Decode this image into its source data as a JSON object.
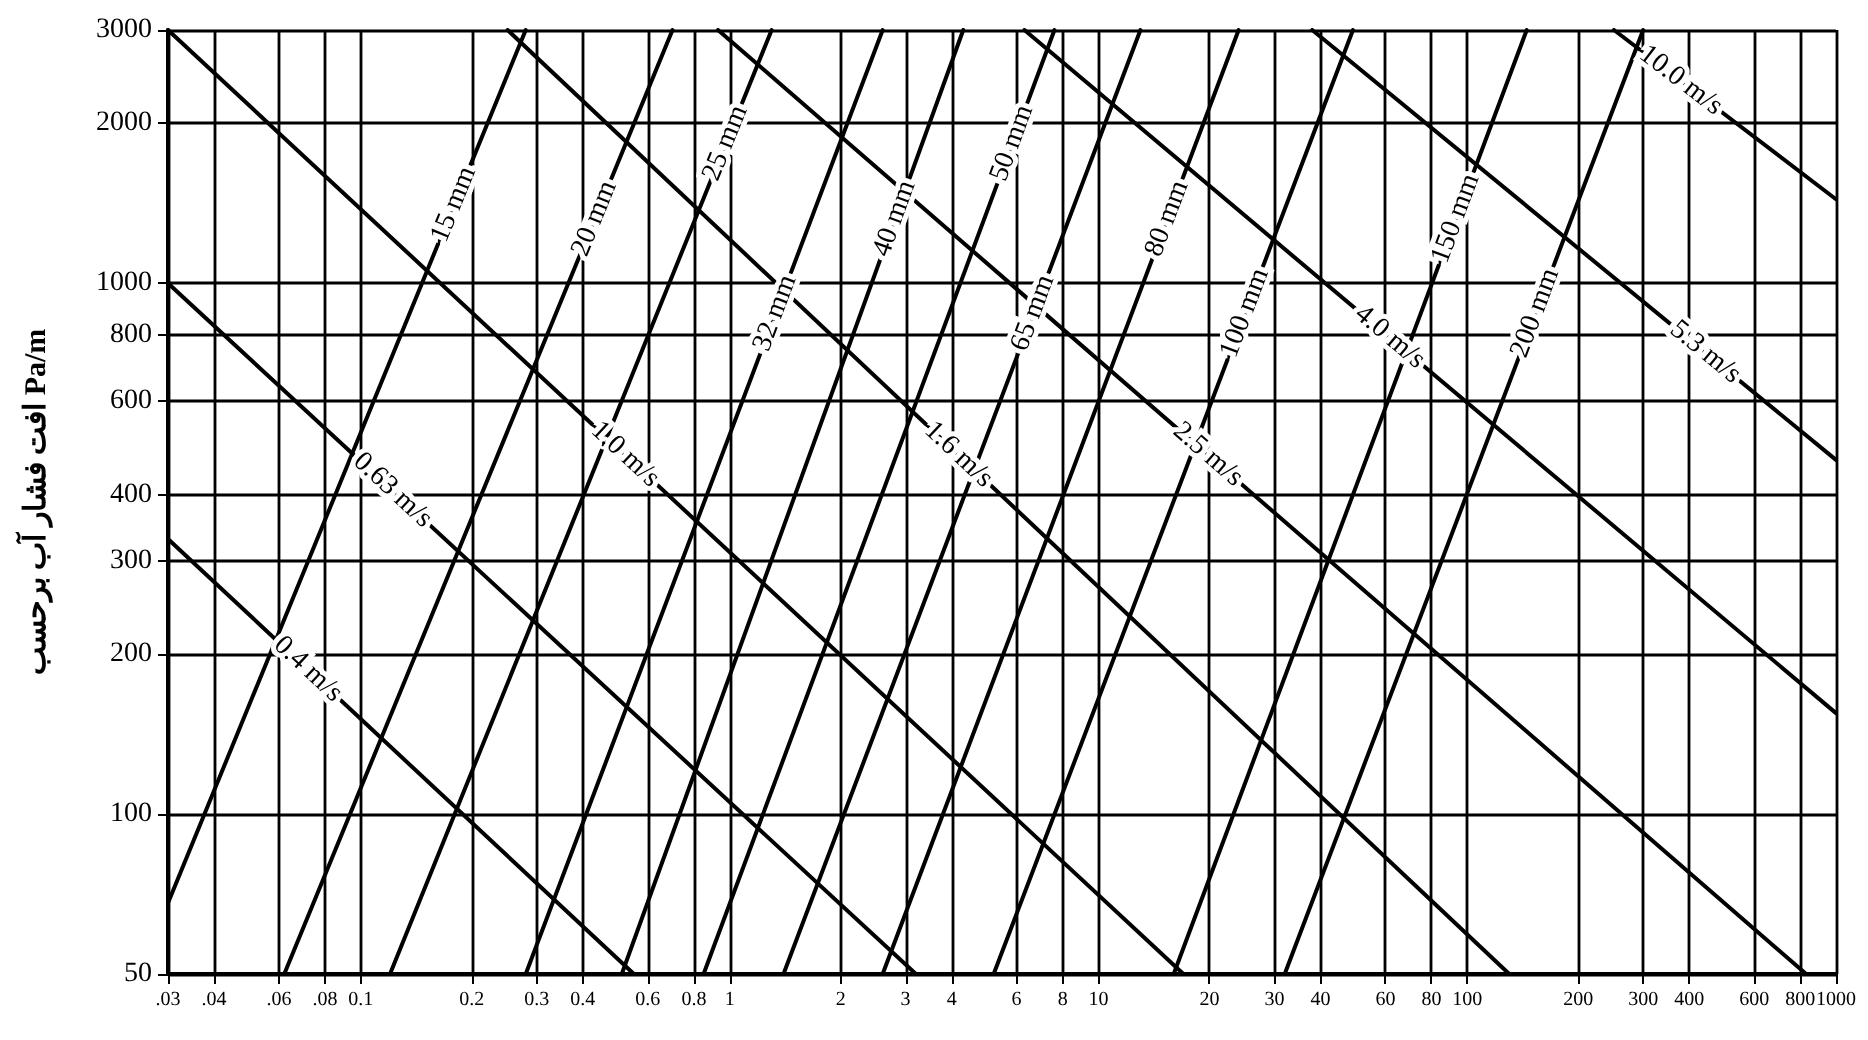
{
  "chart_data": {
    "type": "line",
    "ylabel": "افت فشار آب برحسب Pa/m",
    "log": "xy",
    "grid": true,
    "xlim": [
      0.03,
      1000
    ],
    "ylim": [
      50,
      3000
    ],
    "xticks": [
      {
        "value": 0.03,
        "label": ".03"
      },
      {
        "value": 0.04,
        "label": ".04"
      },
      {
        "value": 0.06,
        "label": ".06"
      },
      {
        "value": 0.08,
        "label": ".08"
      },
      0.1,
      0.2,
      0.3,
      0.4,
      0.6,
      0.8,
      1,
      2,
      3,
      4,
      6,
      8,
      10,
      20,
      30,
      40,
      60,
      80,
      100,
      200,
      300,
      400,
      600,
      800,
      1000
    ],
    "yticks": [
      50,
      100,
      200,
      300,
      400,
      600,
      800,
      1000,
      2000,
      3000
    ],
    "series": [
      {
        "name": "15 mm",
        "color": "#000000",
        "x": [
          0.03,
          0.28
        ],
        "values": [
          68,
          3000
        ]
      },
      {
        "name": "20 mm",
        "color": "#000000",
        "x": [
          0.062,
          0.7
        ],
        "values": [
          50,
          3000
        ]
      },
      {
        "name": "25 mm",
        "color": "#000000",
        "x": [
          0.12,
          1.3
        ],
        "values": [
          50,
          3000
        ]
      },
      {
        "name": "32 mm",
        "color": "#000000",
        "x": [
          0.28,
          2.6
        ],
        "values": [
          50,
          3000
        ]
      },
      {
        "name": "40 mm",
        "color": "#000000",
        "x": [
          0.51,
          4.3
        ],
        "values": [
          50,
          3000
        ]
      },
      {
        "name": "50 mm",
        "color": "#000000",
        "x": [
          0.85,
          7.6
        ],
        "values": [
          50,
          3000
        ]
      },
      {
        "name": "65 mm",
        "color": "#000000",
        "x": [
          1.4,
          13
        ],
        "values": [
          50,
          3000
        ]
      },
      {
        "name": "80 mm",
        "color": "#000000",
        "x": [
          2.6,
          24
        ],
        "values": [
          50,
          3000
        ]
      },
      {
        "name": "100 mm",
        "color": "#000000",
        "x": [
          5.2,
          49
        ],
        "values": [
          50,
          3000
        ]
      },
      {
        "name": "150 mm",
        "color": "#000000",
        "x": [
          16,
          145
        ],
        "values": [
          50,
          3000
        ]
      },
      {
        "name": "200 mm",
        "color": "#000000",
        "x": [
          32,
          300
        ],
        "values": [
          50,
          3000
        ]
      },
      {
        "name": "0.4 m/s",
        "color": "#000000",
        "x": [
          0.03,
          0.55
        ],
        "values": [
          330,
          50
        ]
      },
      {
        "name": "0.63 m/s",
        "color": "#000000",
        "x": [
          0.03,
          3.2
        ],
        "values": [
          1000,
          50
        ]
      },
      {
        "name": "1.0 m/s",
        "color": "#000000",
        "x": [
          0.03,
          17
        ],
        "values": [
          3000,
          50
        ]
      },
      {
        "name": "1.6 m/s",
        "color": "#000000",
        "x": [
          0.25,
          130
        ],
        "values": [
          3000,
          50
        ]
      },
      {
        "name": "2.5 m/s",
        "color": "#000000",
        "x": [
          0.93,
          830
        ],
        "values": [
          3000,
          50
        ]
      },
      {
        "name": "4.0 m/s",
        "color": "#000000",
        "x": [
          6.3,
          1000
        ],
        "values": [
          3000,
          155
        ]
      },
      {
        "name": "5.3 m/s",
        "color": "#000000",
        "x": [
          38,
          1000
        ],
        "values": [
          3000,
          465
        ]
      },
      {
        "name": "10.0 m/s",
        "color": "#000000",
        "x": [
          250,
          1000
        ],
        "values": [
          3000,
          1440
        ]
      }
    ]
  }
}
